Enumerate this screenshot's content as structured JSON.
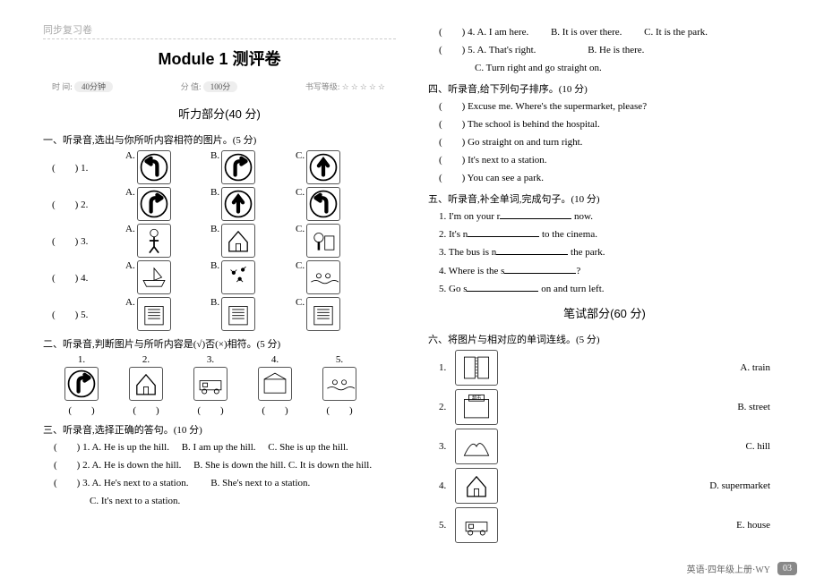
{
  "breadcrumb": "同步复习卷",
  "title": "Module 1 测评卷",
  "meta": {
    "time_label": "时 间:",
    "time_value": "40分钟",
    "score_label": "分 值:",
    "score_value": "100分",
    "rating_label": "书写等级:",
    "rating_stars": "☆☆☆☆☆"
  },
  "listening_header": "听力部分(40 分)",
  "q1": {
    "head": "一、听录音,选出与你所听内容相符的图片。(5 分)",
    "rows": [
      {
        "stem": "(　　) 1.",
        "labels": [
          "A.",
          "B.",
          "C."
        ],
        "icons": [
          "arrow-left-turn",
          "arrow-right-turn",
          "arrow-up"
        ]
      },
      {
        "stem": "(　　) 2.",
        "labels": [
          "A.",
          "B.",
          "C."
        ],
        "icons": [
          "arrow-right-turn",
          "arrow-up",
          "arrow-left-turn"
        ]
      },
      {
        "stem": "(　　) 3.",
        "labels": [
          "A.",
          "B.",
          "C."
        ],
        "icons": [
          "person",
          "house",
          "tree-scene"
        ]
      },
      {
        "stem": "(　　) 4.",
        "labels": [
          "A.",
          "B.",
          "C."
        ],
        "icons": [
          "boat",
          "fireworks",
          "swimmers"
        ]
      },
      {
        "stem": "(　　) 5.",
        "labels": [
          "A.",
          "B.",
          "C."
        ],
        "icons": [
          "building-a",
          "building-b",
          "building-c"
        ]
      }
    ]
  },
  "q2": {
    "head": "二、听录音,判断图片与所听内容是(√)否(×)相符。(5 分)",
    "nums": [
      "1.",
      "2.",
      "3.",
      "4.",
      "5."
    ],
    "icons": [
      "arrow-right-turn",
      "house-small",
      "train-small",
      "station-small",
      "swim-small"
    ],
    "paren": "(　　)"
  },
  "q3": {
    "head": "三、听录音,选择正确的答句。(10 分)",
    "items": [
      {
        "stem": "(　　) 1.",
        "opts": [
          "A. He is up the hill.",
          "B. I am up the hill.",
          "C. She is up the hill."
        ]
      },
      {
        "stem": "(　　) 2.",
        "opts": [
          "A. He is down the hill.",
          "B. She is down the hill.",
          "C. It is down the hill."
        ]
      },
      {
        "stem": "(　　) 3.",
        "opts_line1": [
          "A. He's next to a station.",
          "B. She's next to a station."
        ],
        "opt_c": "C. It's next to a station."
      }
    ]
  },
  "q3_right": [
    {
      "stem": "(　　) 4.",
      "opts": [
        "A. I am here.",
        "B. It is over there.",
        "C. It is the park."
      ]
    },
    {
      "stem": "(　　) 5.",
      "opts_line1": [
        "A. That's right.",
        "B. He is there."
      ],
      "opt_c": "C. Turn right and go straight on."
    }
  ],
  "q4": {
    "head": "四、听录音,给下列句子排序。(10 分)",
    "items": [
      "(　　) Excuse me. Where's the supermarket, please?",
      "(　　) The school is behind the hospital.",
      "(　　) Go straight on and turn right.",
      "(　　) It's next to a station.",
      "(　　) You can see a park."
    ]
  },
  "q5": {
    "head": "五、听录音,补全单词,完成句子。(10 分)",
    "items": [
      {
        "pre": "1. I'm on your r",
        "post": " now."
      },
      {
        "pre": "2. It's n",
        "post": " to the cinema."
      },
      {
        "pre": "3. The bus is n",
        "post": " the park."
      },
      {
        "pre": "4. Where is the s",
        "post": "?"
      },
      {
        "pre": "5. Go s",
        "post": " on and turn left."
      }
    ]
  },
  "writing_header": "笔试部分(60 分)",
  "q6": {
    "head": "六、将图片与相对应的单词连线。(5 分)",
    "items": [
      {
        "num": "1.",
        "icon": "street-img",
        "ans": "A. train"
      },
      {
        "num": "2.",
        "icon": "supermarket-img",
        "ans": "B. street"
      },
      {
        "num": "3.",
        "icon": "hill-img",
        "ans": "C. hill"
      },
      {
        "num": "4.",
        "icon": "house-img",
        "ans": "D. supermarket"
      },
      {
        "num": "5.",
        "icon": "train-img",
        "ans": "E. house"
      }
    ]
  },
  "footer": {
    "text": "英语·四年级上册·WY",
    "page": "03"
  },
  "supermarket_label": "超市"
}
